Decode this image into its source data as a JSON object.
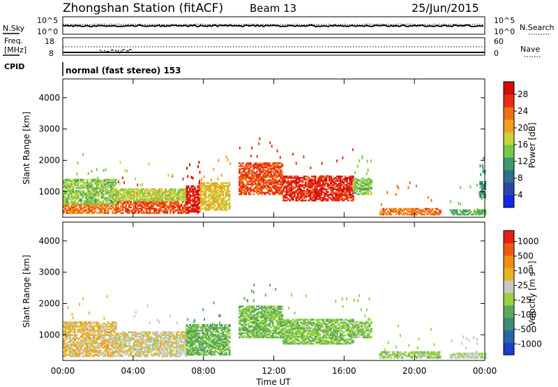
{
  "header": {
    "title": "Zhongshan Station (fitACF)",
    "beam": "Beam 13",
    "date": "25/Jun/2015"
  },
  "top_panels": {
    "nsky_label": "N.Sky",
    "nsky_ticks": [
      "10^5",
      "10^0"
    ],
    "nsearch_label": "N.Search",
    "nsearch_ticks": [
      "10^5",
      "10^0"
    ],
    "freq_label_1": "Freq.",
    "freq_label_2": "[MHz]",
    "freq_ticks": [
      "18",
      "8"
    ],
    "nave_label": "Nave",
    "nave_ticks": [
      "60",
      "0"
    ],
    "cpid_label": "CPID",
    "cpid_text": "normal (fast stereo) 153"
  },
  "colors": {
    "power_scale": [
      "#1428e6",
      "#2846a8",
      "#2e6e8e",
      "#3c9a6e",
      "#78c846",
      "#c8d23c",
      "#f0a01e",
      "#f06e14",
      "#e62d14",
      "#d20a0a"
    ],
    "velocity_scale": [
      "#1e3cc8",
      "#2a64a6",
      "#3c8c78",
      "#5aaa5a",
      "#96d23c",
      "#c8c8c8",
      "#e6b41e",
      "#f08c14",
      "#eb5a14",
      "#e61e14"
    ]
  },
  "chart_data": [
    {
      "type": "heatmap",
      "panel": "power",
      "xlabel": "Time UT",
      "ylabel": "Slant Range [km]",
      "x_ticks": [
        "00:00",
        "04:00",
        "08:00",
        "12:00",
        "16:00",
        "20:00",
        "00:00"
      ],
      "xlim_hours": [
        0,
        24
      ],
      "y_ticks": [
        "1000",
        "2000",
        "3000",
        "4000"
      ],
      "ylim_km": [
        180,
        4600
      ],
      "colorbar_label": "Power [dB]",
      "colorbar_ticks": [
        "28",
        "24",
        "20",
        "16",
        "12",
        "8",
        "4"
      ],
      "colorbar_range": [
        0,
        30
      ],
      "regions": [
        {
          "t": [
            0.0,
            3.0
          ],
          "r": [
            300,
            600
          ],
          "value": 22
        },
        {
          "t": [
            0.0,
            3.0
          ],
          "r": [
            600,
            1400
          ],
          "value": 14
        },
        {
          "t": [
            3.0,
            7.0
          ],
          "r": [
            300,
            700
          ],
          "value": 24
        },
        {
          "t": [
            3.0,
            7.0
          ],
          "r": [
            700,
            1100
          ],
          "value": 16
        },
        {
          "t": [
            7.0,
            7.8
          ],
          "r": [
            300,
            1200
          ],
          "value": 27
        },
        {
          "t": [
            7.8,
            9.5
          ],
          "r": [
            400,
            1300
          ],
          "value": 18
        },
        {
          "t": [
            10.0,
            12.5
          ],
          "r": [
            900,
            1900
          ],
          "value": 24
        },
        {
          "t": [
            12.5,
            16.5
          ],
          "r": [
            700,
            1500
          ],
          "value": 26
        },
        {
          "t": [
            16.5,
            17.5
          ],
          "r": [
            900,
            1400
          ],
          "value": 14
        },
        {
          "t": [
            18.0,
            21.5
          ],
          "r": [
            250,
            450
          ],
          "value": 22
        },
        {
          "t": [
            22.0,
            24.0
          ],
          "r": [
            250,
            400
          ],
          "value": 12
        },
        {
          "t": [
            23.7,
            24.0
          ],
          "r": [
            800,
            1300
          ],
          "value": 10
        }
      ]
    },
    {
      "type": "heatmap",
      "panel": "velocity",
      "xlabel": "Time UT",
      "ylabel": "Slant Range [km]",
      "x_ticks": [
        "00:00",
        "04:00",
        "08:00",
        "12:00",
        "16:00",
        "20:00",
        "00:00"
      ],
      "xlim_hours": [
        0,
        24
      ],
      "y_ticks": [
        "1000",
        "2000",
        "3000",
        "4000"
      ],
      "ylim_km": [
        180,
        4600
      ],
      "colorbar_label": "Velocity [m s⁻¹]",
      "colorbar_ticks": [
        "1000",
        "500",
        "100",
        "25",
        "-25",
        "-100",
        "-500",
        "-1000"
      ],
      "colorbar_range": [
        -1200,
        1200
      ],
      "regions": [
        {
          "t": [
            0.0,
            3.0
          ],
          "r": [
            300,
            1400
          ],
          "value": 300
        },
        {
          "t": [
            3.0,
            7.0
          ],
          "r": [
            300,
            1100
          ],
          "value": 150
        },
        {
          "t": [
            7.0,
            9.5
          ],
          "r": [
            350,
            1300
          ],
          "value": -300
        },
        {
          "t": [
            10.0,
            12.5
          ],
          "r": [
            900,
            1900
          ],
          "value": -250
        },
        {
          "t": [
            12.5,
            16.5
          ],
          "r": [
            700,
            1500
          ],
          "value": -200
        },
        {
          "t": [
            16.5,
            17.5
          ],
          "r": [
            900,
            1400
          ],
          "value": -150
        },
        {
          "t": [
            18.0,
            21.5
          ],
          "r": [
            250,
            450
          ],
          "value": -100
        },
        {
          "t": [
            22.0,
            24.0
          ],
          "r": [
            250,
            400
          ],
          "value": 40
        }
      ]
    }
  ]
}
